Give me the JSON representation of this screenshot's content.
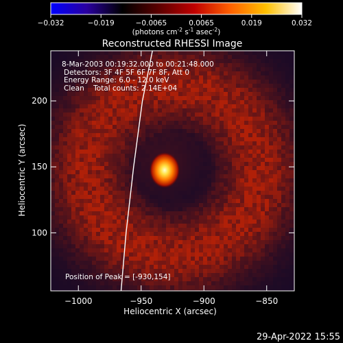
{
  "colorbar": {
    "ticks": [
      "-0.032",
      "-0.019",
      "-0.0065",
      "0.0065",
      "0.019",
      "0.032"
    ],
    "stops": [
      "#0000ff",
      "#2a00a0",
      "#000000",
      "#5a0000",
      "#c00000",
      "#ff6000",
      "#ffc000",
      "#ffffff"
    ],
    "unit_prefix": "(photons cm",
    "unit_exp1": "-2",
    "unit_mid": " s",
    "unit_exp2": "-1",
    "unit_mid2": " asec",
    "unit_exp3": "-2",
    "unit_suffix": ")"
  },
  "chart_data": {
    "type": "heatmap",
    "title": "Reconstructed RHESSI Image",
    "xlabel": "Heliocentric X (arcsec)",
    "ylabel": "Heliocentric Y (arcsec)",
    "xlim": [
      -1022,
      -828
    ],
    "ylim": [
      56,
      238
    ],
    "x_ticks": [
      -1000,
      -950,
      -900,
      -850
    ],
    "y_ticks": [
      100,
      150,
      200
    ],
    "x_tick_labels": [
      "−1000",
      "−950",
      "−900",
      "−850"
    ],
    "y_tick_labels": [
      "100",
      "150",
      "200"
    ],
    "peak": [
      -930,
      154
    ],
    "limb_curve": [
      [
        -966,
        56
      ],
      [
        -962,
        100
      ],
      [
        -956,
        150
      ],
      [
        -949,
        200
      ],
      [
        -941,
        238
      ]
    ],
    "annotations": [
      "8-Mar-2003 00:19:32.000 to 00:21:48.000",
      "Detectors: 3F 4F 5F 6F 7F 8F, Att 0",
      "Energy Range: 6.0 - 12.0 keV",
      "Clean    Total counts: 2.14E+04"
    ],
    "peak_label": "Position of Peak = [-930,154]"
  },
  "footer": {
    "timestamp": "29-Apr-2022 15:55"
  }
}
